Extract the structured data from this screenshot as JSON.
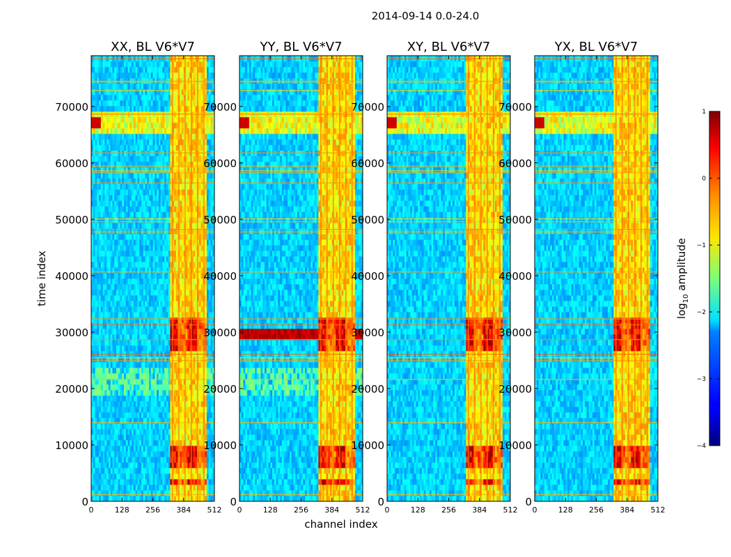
{
  "chart_data": {
    "type": "heatmap",
    "title": "2014-09-14 0.0-24.0",
    "xlabel": "channel index",
    "ylabel": "time index",
    "xlim": [
      0,
      512
    ],
    "ylim": [
      0,
      79000
    ],
    "xticks": [
      0,
      128,
      256,
      384,
      512
    ],
    "xtick_labels": [
      "0",
      "128",
      "256",
      "384",
      "512"
    ],
    "yticks": [
      0,
      10000,
      20000,
      30000,
      40000,
      50000,
      60000,
      70000
    ],
    "ytick_labels": [
      "0",
      "10000",
      "20000",
      "30000",
      "40000",
      "50000",
      "60000",
      "70000"
    ],
    "panels": [
      {
        "name": "XX",
        "title": "XX, BL V6*V7"
      },
      {
        "name": "YY",
        "title": "YY, BL V6*V7"
      },
      {
        "name": "XY",
        "title": "XY, BL V6*V7"
      },
      {
        "name": "YX",
        "title": "YX, BL V6*V7"
      }
    ],
    "colorbar": {
      "label_prefix": "log",
      "label_sub": "10",
      "label_suffix": " amplitude",
      "range": [
        -4,
        1
      ],
      "ticks": [
        1,
        0,
        -1,
        -2,
        -3,
        -4
      ],
      "tick_labels": [
        "1",
        "0",
        "−1",
        "−2",
        "−3",
        "−4"
      ],
      "colormap": "jet"
    },
    "features": {
      "rfi_channel_band": [
        325,
        480
      ],
      "strong_rfi_time_ranges": [
        [
          27000,
          33000
        ],
        [
          2500,
          3500
        ],
        [
          6000,
          10000
        ]
      ],
      "bright_time_band": [
        65500,
        69000
      ]
    }
  }
}
